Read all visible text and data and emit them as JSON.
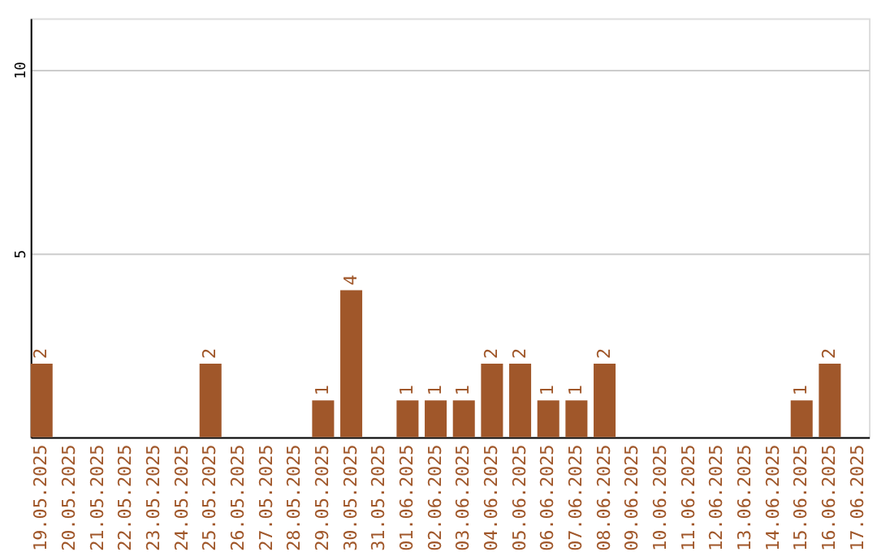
{
  "chart_data": {
    "type": "bar",
    "categories": [
      "19.05.2025",
      "20.05.2025",
      "21.05.2025",
      "22.05.2025",
      "23.05.2025",
      "24.05.2025",
      "25.05.2025",
      "26.05.2025",
      "27.05.2025",
      "28.05.2025",
      "29.05.2025",
      "30.05.2025",
      "31.05.2025",
      "01.06.2025",
      "02.06.2025",
      "03.06.2025",
      "04.06.2025",
      "05.06.2025",
      "06.06.2025",
      "07.06.2025",
      "08.06.2025",
      "09.06.2025",
      "10.06.2025",
      "11.06.2025",
      "12.06.2025",
      "13.06.2025",
      "14.06.2025",
      "15.06.2025",
      "16.06.2025",
      "17.06.2025"
    ],
    "values": [
      2,
      0,
      0,
      0,
      0,
      0,
      2,
      0,
      0,
      0,
      1,
      4,
      0,
      1,
      1,
      1,
      2,
      2,
      1,
      1,
      2,
      0,
      0,
      0,
      0,
      0,
      0,
      1,
      2,
      0
    ],
    "value_labels": [
      "2",
      null,
      null,
      null,
      null,
      null,
      "2",
      null,
      null,
      null,
      "1",
      "4",
      null,
      "1",
      "1",
      "1",
      "2",
      "2",
      "1",
      "1",
      "2",
      null,
      null,
      null,
      null,
      null,
      null,
      "1",
      "2",
      null
    ],
    "color": "#a0572a",
    "ylim": [
      0,
      11.4
    ],
    "yticks": [
      5,
      10
    ],
    "grid": "y"
  }
}
